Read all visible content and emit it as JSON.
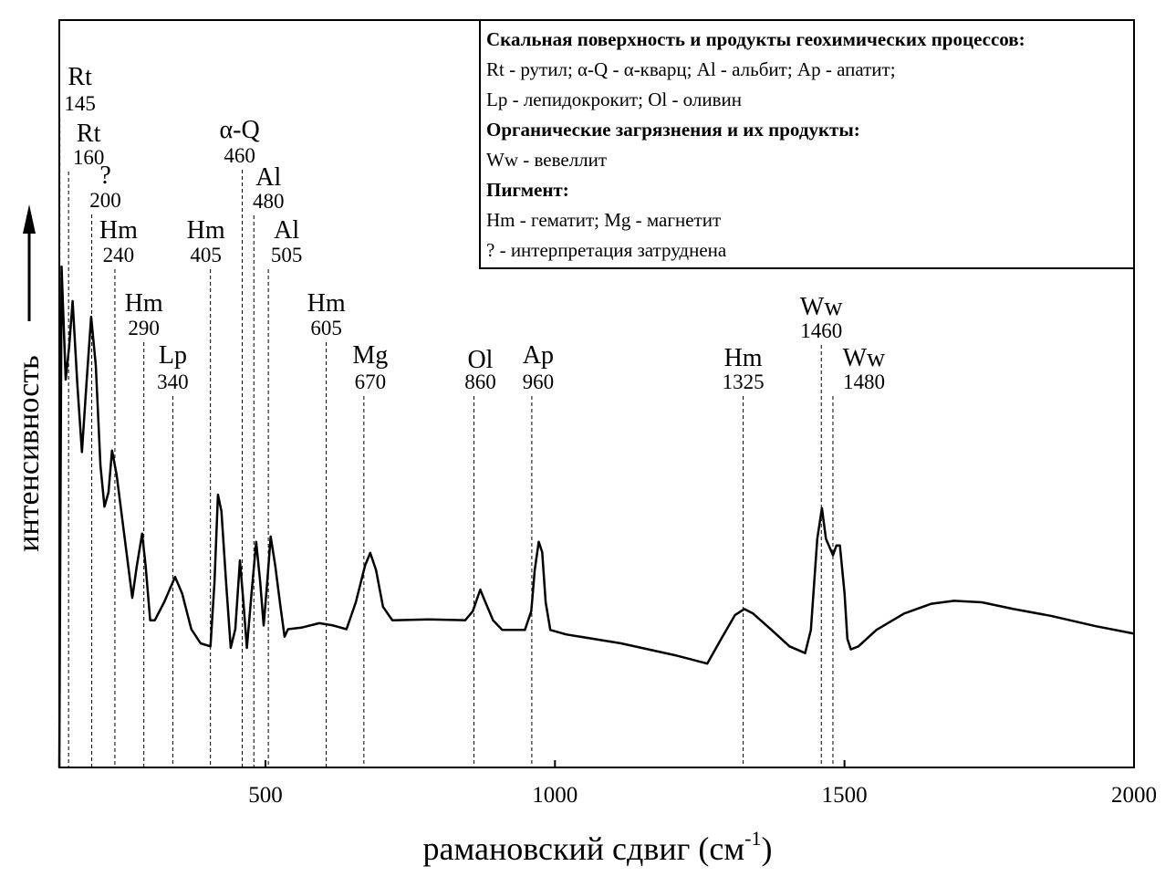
{
  "chart_data": {
    "type": "line",
    "ylabel": "интенсивность",
    "xlabel": [
      "рамановский сдвиг (см",
      "-1",
      ")"
    ],
    "xlim": [
      144,
      2000
    ],
    "xticks": [
      500,
      1000,
      1500,
      2000
    ],
    "ylim": [
      0,
      100
    ],
    "color": "#000000",
    "x": [
      144,
      148,
      155,
      161,
      167,
      175,
      183,
      191,
      199,
      207,
      215,
      222,
      229,
      235,
      243,
      251,
      259,
      270,
      278,
      287,
      293,
      301,
      309,
      325,
      344,
      356,
      372,
      388,
      405,
      412,
      418,
      424,
      432,
      440,
      448,
      456,
      462,
      468,
      476,
      484,
      491,
      497,
      503,
      509,
      517,
      525,
      533,
      539,
      562,
      593,
      617,
      640,
      656,
      672,
      681,
      691,
      703,
      719,
      782,
      845,
      858,
      871,
      880,
      893,
      909,
      948,
      959,
      965,
      972,
      978,
      984,
      992,
      1019,
      1114,
      1208,
      1263,
      1287,
      1311,
      1327,
      1342,
      1374,
      1405,
      1432,
      1442,
      1453,
      1461,
      1468,
      1480,
      1486,
      1492,
      1500,
      1505,
      1511,
      1524,
      1555,
      1603,
      1650,
      1689,
      1737,
      1792,
      1855,
      1934,
      2000
    ],
    "values": [
      0,
      67.0,
      51.9,
      56.3,
      62.4,
      51.4,
      42.2,
      51.4,
      60.3,
      53.8,
      40.4,
      34.9,
      36.8,
      42.4,
      39.2,
      34.3,
      29.4,
      22.7,
      27.0,
      31.3,
      27.0,
      19.7,
      19.7,
      22.1,
      25.5,
      23.3,
      18.5,
      16.6,
      16.2,
      24.8,
      36.5,
      34.3,
      24.8,
      16.0,
      18.5,
      27.7,
      22.1,
      16.0,
      23.3,
      30.2,
      24.8,
      19.0,
      24.8,
      30.9,
      27.0,
      22.1,
      17.5,
      18.5,
      18.7,
      19.3,
      19.0,
      18.5,
      22.1,
      27.0,
      28.7,
      26.4,
      21.5,
      19.7,
      19.8,
      19.7,
      20.9,
      23.8,
      22.1,
      19.7,
      18.4,
      18.4,
      20.9,
      26.4,
      30.2,
      28.8,
      22.1,
      18.4,
      17.8,
      16.6,
      15.0,
      13.9,
      17.2,
      20.4,
      21.2,
      20.6,
      18.4,
      16.2,
      15.3,
      18.4,
      30.6,
      34.7,
      30.6,
      28.4,
      29.7,
      29.7,
      23.3,
      17.2,
      15.8,
      16.2,
      18.4,
      20.6,
      21.9,
      22.3,
      22.1,
      21.2,
      20.3,
      18.9,
      17.9
    ],
    "annotations": [
      {
        "label": "Rt",
        "x": 145
      },
      {
        "label": "Rt",
        "x": 160
      },
      {
        "label": "?",
        "x": 200
      },
      {
        "label": "Hm",
        "x": 240
      },
      {
        "label": "Hm",
        "x": 290
      },
      {
        "label": "Lp",
        "x": 340
      },
      {
        "label": "Hm",
        "x": 405
      },
      {
        "label": "α-Q",
        "x": 460
      },
      {
        "label": "Al",
        "x": 480
      },
      {
        "label": "Al",
        "x": 505
      },
      {
        "label": "Hm",
        "x": 605
      },
      {
        "label": "Mg",
        "x": 670
      },
      {
        "label": "Ol",
        "x": 860
      },
      {
        "label": "Ap",
        "x": 960
      },
      {
        "label": "Hm",
        "x": 1325
      },
      {
        "label": "Ww",
        "x": 1460
      },
      {
        "label": "Ww",
        "x": 1480
      }
    ],
    "legend": [
      {
        "heading": "Скальная поверхность и продукты геохимических процессов:",
        "items": [
          "Rt - рутил; α-Q - α-кварц; Al - альбит; Ap - апатит;",
          "Lp - лепидокрокит;  Ol - оливин"
        ]
      },
      {
        "heading": "Органические загрязнения и их продукты:",
        "items": [
          "Ww - вевеллит"
        ]
      },
      {
        "heading": "Пигмент:",
        "items": [
          "Hm - гематит; Mg - магнетит",
          "? - интерпретация затруднена"
        ]
      }
    ]
  }
}
